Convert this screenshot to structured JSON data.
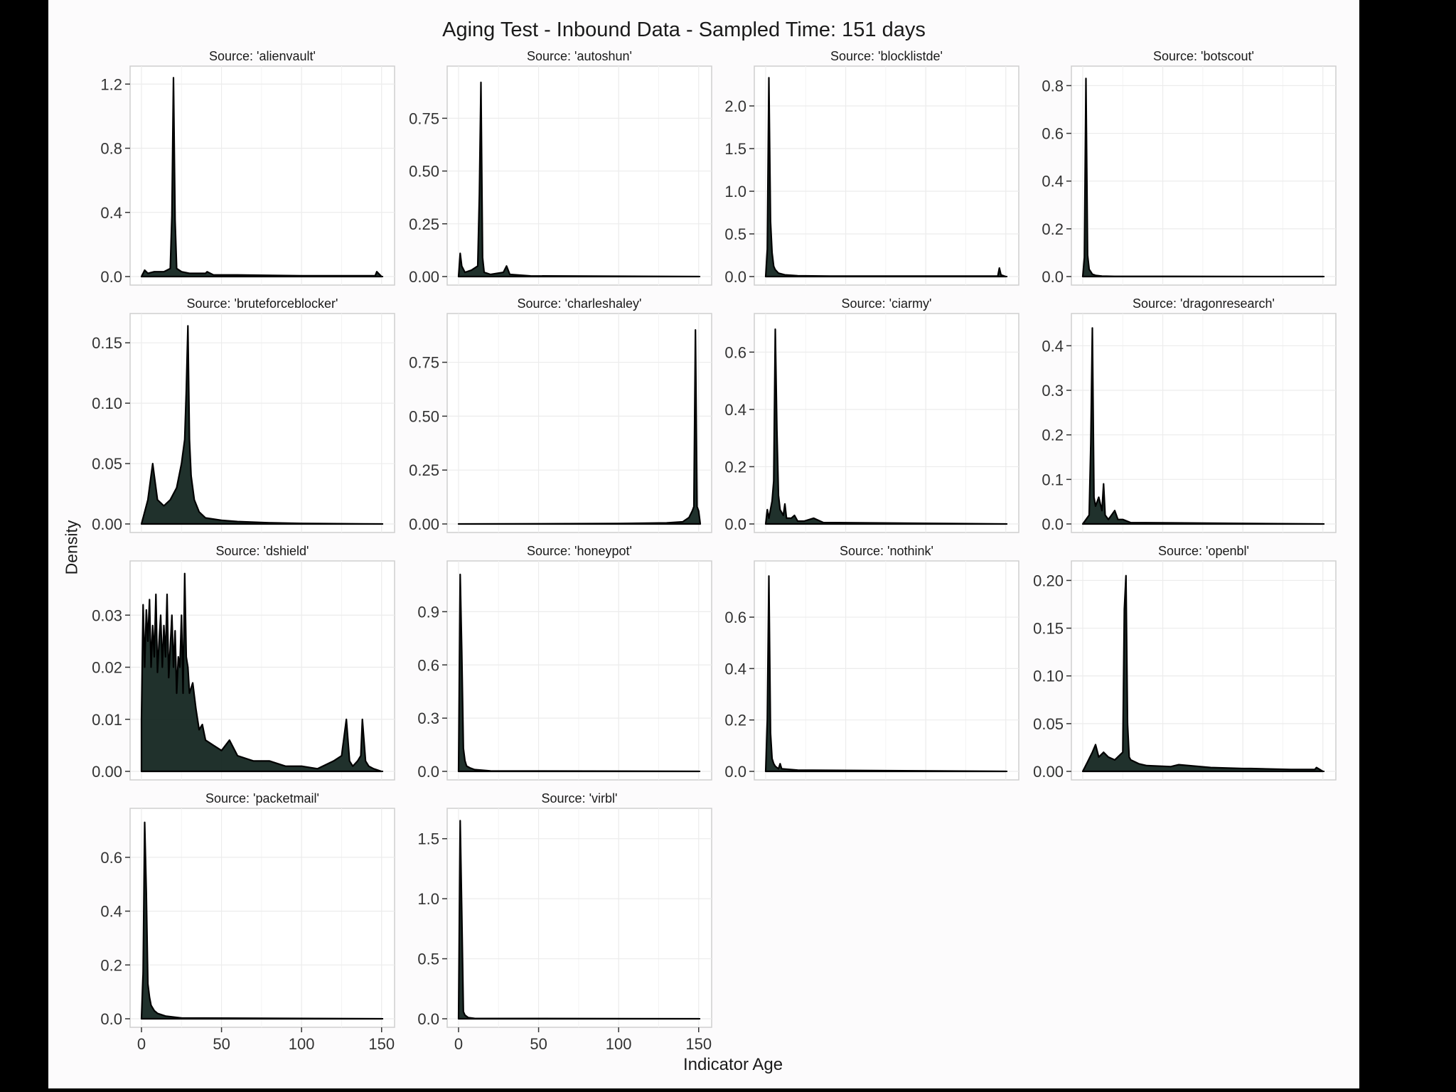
{
  "title": "Aging Test - Inbound Data - Sampled Time: 151 days",
  "xlabel": "Indicator Age",
  "ylabel": "Density",
  "colors": {
    "fill": "#0d1f1a",
    "line": "#000000",
    "panel_border": "#cfcfcf",
    "grid": "#ececec",
    "page": "#fcfbfc"
  },
  "chart_data": {
    "type": "area",
    "grid": true,
    "xlim": [
      0,
      151
    ],
    "xticks": [
      0,
      50,
      100,
      150
    ],
    "panels": [
      {
        "name": "Source: 'alienvault'",
        "ylim": [
          0,
          1.25
        ],
        "yticks": [
          0.0,
          0.4,
          0.8,
          1.2
        ],
        "ytick_labels": [
          "0.0",
          "0.4",
          "0.8",
          "1.2"
        ],
        "x": [
          0,
          2,
          4,
          8,
          14,
          18,
          19,
          20,
          21,
          22,
          25,
          30,
          40,
          41,
          45,
          60,
          100,
          146,
          147,
          150
        ],
        "y": [
          0,
          0.04,
          0.02,
          0.03,
          0.03,
          0.05,
          0.38,
          1.24,
          0.35,
          0.05,
          0.03,
          0.02,
          0.02,
          0.03,
          0.01,
          0.01,
          0.005,
          0.005,
          0.03,
          0.0
        ]
      },
      {
        "name": "Source: 'autoshun'",
        "ylim": [
          0,
          0.95
        ],
        "yticks": [
          0.0,
          0.25,
          0.5,
          0.75
        ],
        "ytick_labels": [
          "0.00",
          "0.25",
          "0.50",
          "0.75"
        ],
        "x": [
          0,
          1,
          2,
          4,
          8,
          12,
          13,
          14,
          15,
          16,
          20,
          28,
          30,
          32,
          45,
          150
        ],
        "y": [
          0,
          0.11,
          0.05,
          0.02,
          0.03,
          0.05,
          0.39,
          0.92,
          0.09,
          0.02,
          0.01,
          0.02,
          0.05,
          0.01,
          0.003,
          0.0
        ]
      },
      {
        "name": "Source: 'blocklistde'",
        "ylim": [
          0,
          2.35
        ],
        "yticks": [
          0.0,
          0.5,
          1.0,
          1.5,
          2.0
        ],
        "ytick_labels": [
          "0.0",
          "0.5",
          "1.0",
          "1.5",
          "2.0"
        ],
        "x": [
          0,
          1,
          2,
          3,
          4,
          5,
          6,
          8,
          12,
          20,
          40,
          145,
          146,
          147,
          150
        ],
        "y": [
          0,
          0.32,
          2.33,
          0.65,
          0.28,
          0.12,
          0.08,
          0.04,
          0.02,
          0.01,
          0.005,
          0.005,
          0.1,
          0.02,
          0.0
        ]
      },
      {
        "name": "Source: 'botscout'",
        "ylim": [
          0,
          0.84
        ],
        "yticks": [
          0.0,
          0.2,
          0.4,
          0.6,
          0.8
        ],
        "ytick_labels": [
          "0.0",
          "0.2",
          "0.4",
          "0.6",
          "0.8"
        ],
        "x": [
          0,
          1,
          2,
          3,
          4,
          5,
          6,
          8,
          12,
          20,
          150
        ],
        "y": [
          0,
          0.08,
          0.83,
          0.09,
          0.03,
          0.02,
          0.01,
          0.005,
          0.002,
          0.001,
          0.0
        ]
      },
      {
        "name": "Source: 'bruteforceblocker'",
        "ylim": [
          0,
          0.166
        ],
        "yticks": [
          0.0,
          0.05,
          0.1,
          0.15
        ],
        "ytick_labels": [
          "0.00",
          "0.05",
          "0.10",
          "0.15"
        ],
        "x": [
          0,
          2,
          4,
          6,
          7,
          8,
          10,
          14,
          18,
          22,
          25,
          27,
          28,
          29,
          30,
          31,
          33,
          36,
          40,
          50,
          60,
          80,
          100,
          150
        ],
        "y": [
          0,
          0.01,
          0.02,
          0.04,
          0.05,
          0.04,
          0.02,
          0.015,
          0.02,
          0.03,
          0.05,
          0.07,
          0.11,
          0.164,
          0.07,
          0.04,
          0.02,
          0.01,
          0.005,
          0.003,
          0.002,
          0.001,
          0.0005,
          0.0
        ]
      },
      {
        "name": "Source: 'charleshaley'",
        "ylim": [
          0,
          0.93
        ],
        "yticks": [
          0.0,
          0.25,
          0.5,
          0.75
        ],
        "ytick_labels": [
          "0.00",
          "0.25",
          "0.50",
          "0.75"
        ],
        "x": [
          0,
          100,
          130,
          140,
          144,
          146,
          147,
          148,
          149,
          150,
          151
        ],
        "y": [
          0,
          0.002,
          0.005,
          0.01,
          0.03,
          0.06,
          0.08,
          0.9,
          0.08,
          0.06,
          0.0
        ]
      },
      {
        "name": "Source: 'ciarmy'",
        "ylim": [
          0,
          0.7
        ],
        "yticks": [
          0.0,
          0.2,
          0.4,
          0.6
        ],
        "ytick_labels": [
          "0.0",
          "0.2",
          "0.4",
          "0.6"
        ],
        "x": [
          0,
          1,
          2,
          4,
          5,
          6,
          7,
          8,
          9,
          11,
          12,
          13,
          16,
          18,
          20,
          24,
          30,
          36,
          150
        ],
        "y": [
          0,
          0.05,
          0.02,
          0.08,
          0.15,
          0.68,
          0.33,
          0.1,
          0.05,
          0.03,
          0.07,
          0.02,
          0.02,
          0.03,
          0.01,
          0.01,
          0.02,
          0.005,
          0.0
        ]
      },
      {
        "name": "Source: 'dragonresearch'",
        "ylim": [
          0,
          0.45
        ],
        "yticks": [
          0.0,
          0.1,
          0.2,
          0.3,
          0.4
        ],
        "ytick_labels": [
          "0.0",
          "0.1",
          "0.2",
          "0.3",
          "0.4"
        ],
        "x": [
          0,
          4,
          5,
          6,
          7,
          8,
          10,
          12,
          13,
          14,
          16,
          18,
          20,
          22,
          25,
          30,
          150
        ],
        "y": [
          0,
          0.02,
          0.18,
          0.44,
          0.06,
          0.04,
          0.06,
          0.03,
          0.09,
          0.02,
          0.01,
          0.02,
          0.03,
          0.01,
          0.01,
          0.003,
          0.0
        ]
      },
      {
        "name": "Source: 'dshield'",
        "ylim": [
          0,
          0.0385
        ],
        "yticks": [
          0.0,
          0.01,
          0.02,
          0.03
        ],
        "ytick_labels": [
          "0.00",
          "0.01",
          "0.02",
          "0.03"
        ],
        "x": [
          0,
          1,
          2,
          3,
          4,
          5,
          6,
          7,
          8,
          9,
          10,
          11,
          12,
          13,
          14,
          15,
          16,
          17,
          18,
          19,
          20,
          21,
          22,
          23,
          24,
          25,
          26,
          27,
          28,
          29,
          30,
          32,
          34,
          36,
          38,
          40,
          45,
          50,
          55,
          60,
          70,
          80,
          90,
          100,
          110,
          120,
          125,
          128,
          130,
          132,
          135,
          137,
          138,
          140,
          142,
          145,
          150
        ],
        "y": [
          0.01,
          0.032,
          0.02,
          0.031,
          0.025,
          0.033,
          0.02,
          0.028,
          0.022,
          0.034,
          0.019,
          0.025,
          0.03,
          0.02,
          0.028,
          0.022,
          0.034,
          0.018,
          0.024,
          0.03,
          0.02,
          0.027,
          0.015,
          0.022,
          0.02,
          0.03,
          0.015,
          0.038,
          0.022,
          0.02,
          0.015,
          0.017,
          0.012,
          0.008,
          0.009,
          0.006,
          0.005,
          0.004,
          0.006,
          0.003,
          0.002,
          0.002,
          0.001,
          0.001,
          0.0005,
          0.002,
          0.003,
          0.01,
          0.002,
          0.001,
          0.002,
          0.003,
          0.01,
          0.002,
          0.001,
          0.0005,
          0.0
        ]
      },
      {
        "name": "Source: 'honeypot'",
        "ylim": [
          0,
          1.13
        ],
        "yticks": [
          0.0,
          0.3,
          0.6,
          0.9
        ],
        "ytick_labels": [
          "0.0",
          "0.3",
          "0.6",
          "0.9"
        ],
        "x": [
          0,
          1,
          2,
          3,
          4,
          5,
          7,
          10,
          20,
          150
        ],
        "y": [
          0,
          1.11,
          0.68,
          0.13,
          0.06,
          0.03,
          0.02,
          0.01,
          0.003,
          0.0
        ]
      },
      {
        "name": "Source: 'nothink'",
        "ylim": [
          0,
          0.78
        ],
        "yticks": [
          0.0,
          0.2,
          0.4,
          0.6
        ],
        "ytick_labels": [
          "0.0",
          "0.2",
          "0.4",
          "0.6"
        ],
        "x": [
          0,
          1,
          2,
          3,
          4,
          5,
          6,
          8,
          9,
          10,
          20,
          150
        ],
        "y": [
          0,
          0.2,
          0.76,
          0.15,
          0.05,
          0.03,
          0.02,
          0.01,
          0.03,
          0.01,
          0.005,
          0.0
        ]
      },
      {
        "name": "Source: 'openbl'",
        "ylim": [
          0,
          0.21
        ],
        "yticks": [
          0.0,
          0.05,
          0.1,
          0.15,
          0.2
        ],
        "ytick_labels": [
          "0.00",
          "0.05",
          "0.10",
          "0.15",
          "0.20"
        ],
        "x": [
          0,
          3,
          6,
          8,
          10,
          13,
          16,
          20,
          25,
          26,
          27,
          28,
          29,
          30,
          35,
          40,
          55,
          60,
          80,
          100,
          105,
          130,
          145,
          146,
          150
        ],
        "y": [
          0,
          0.01,
          0.02,
          0.028,
          0.015,
          0.02,
          0.015,
          0.012,
          0.02,
          0.17,
          0.205,
          0.05,
          0.015,
          0.012,
          0.008,
          0.006,
          0.005,
          0.007,
          0.004,
          0.003,
          0.003,
          0.002,
          0.002,
          0.004,
          0.0
        ]
      },
      {
        "name": "Source: 'packetmail'",
        "ylim": [
          0,
          0.745
        ],
        "yticks": [
          0.0,
          0.2,
          0.4,
          0.6
        ],
        "ytick_labels": [
          "0.0",
          "0.2",
          "0.4",
          "0.6"
        ],
        "x": [
          0,
          1,
          2,
          3,
          4,
          5,
          6,
          8,
          10,
          15,
          25,
          150
        ],
        "y": [
          0,
          0.17,
          0.73,
          0.47,
          0.13,
          0.08,
          0.05,
          0.03,
          0.02,
          0.01,
          0.003,
          0.0
        ]
      },
      {
        "name": "Source: 'virbl'",
        "ylim": [
          0,
          1.67
        ],
        "yticks": [
          0.0,
          0.5,
          1.0,
          1.5
        ],
        "ytick_labels": [
          "0.0",
          "0.5",
          "1.0",
          "1.5"
        ],
        "x": [
          0,
          1,
          2,
          3,
          4,
          6,
          10,
          150
        ],
        "y": [
          0,
          1.65,
          0.9,
          0.06,
          0.03,
          0.01,
          0.003,
          0.0
        ]
      }
    ]
  }
}
